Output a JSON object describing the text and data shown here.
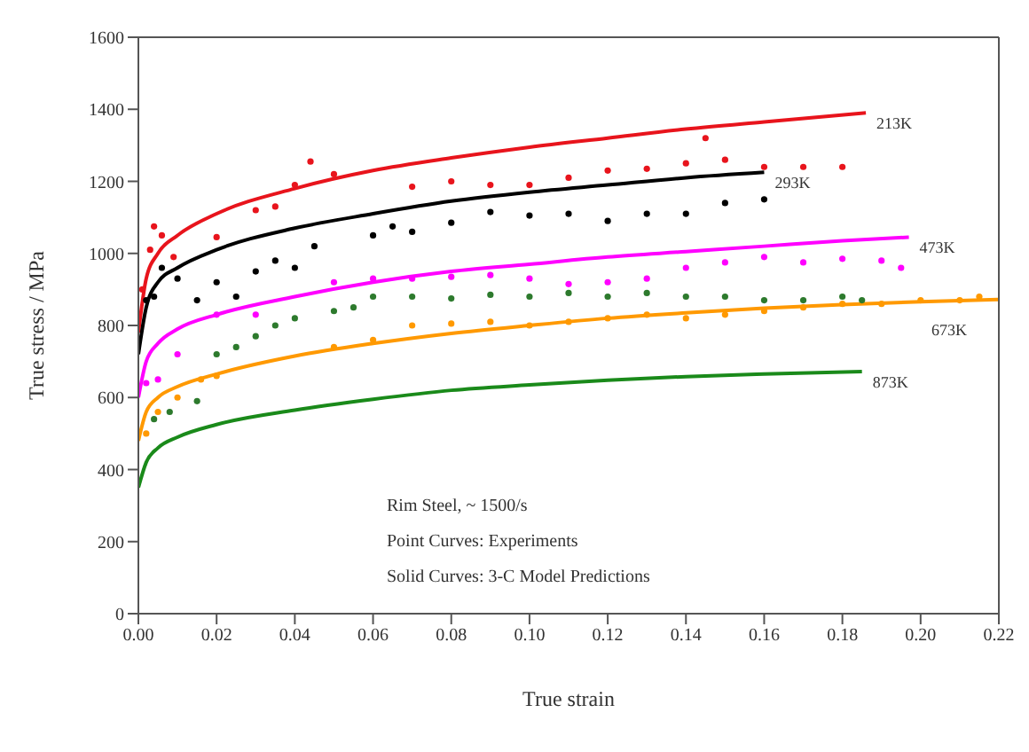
{
  "chart_data": {
    "type": "line",
    "xlabel": "True strain",
    "ylabel": "True stress / MPa",
    "xlim": [
      0,
      0.22
    ],
    "ylim": [
      0,
      1600
    ],
    "xticks": [
      {
        "value": 0,
        "label": "0.00"
      },
      {
        "value": 0.02,
        "label": "0.02"
      },
      {
        "value": 0.04,
        "label": "0.04"
      },
      {
        "value": 0.06,
        "label": "0.06"
      },
      {
        "value": 0.08,
        "label": "0.08"
      },
      {
        "value": 0.1,
        "label": "0.10"
      },
      {
        "value": 0.12,
        "label": "0.12"
      },
      {
        "value": 0.14,
        "label": "0.14"
      },
      {
        "value": 0.16,
        "label": "0.16"
      },
      {
        "value": 0.18,
        "label": "0.18"
      },
      {
        "value": 0.2,
        "label": "0.20"
      },
      {
        "value": 0.22,
        "label": "0.22"
      }
    ],
    "yticks": [
      0,
      200,
      400,
      600,
      800,
      1000,
      1200,
      1400,
      1600
    ],
    "grid": false,
    "legend": false,
    "line_style": "solid",
    "annotations": [
      "Rim Steel, ~ 1500/s",
      "Point Curves: Experiments",
      "Solid Curves: 3-C Model Predictions"
    ],
    "series": [
      {
        "name": "213K",
        "marker": "none",
        "color": "#e8141c",
        "x": [
          0,
          0.002,
          0.005,
          0.01,
          0.02,
          0.04,
          0.06,
          0.08,
          0.1,
          0.12,
          0.14,
          0.16,
          0.186
        ],
        "values": [
          780,
          930,
          1000,
          1050,
          1110,
          1180,
          1230,
          1265,
          1295,
          1320,
          1345,
          1365,
          1390
        ]
      },
      {
        "name": "293K",
        "marker": "none",
        "color": "#000000",
        "x": [
          0,
          0.002,
          0.005,
          0.01,
          0.02,
          0.04,
          0.06,
          0.08,
          0.1,
          0.12,
          0.14,
          0.16
        ],
        "values": [
          720,
          850,
          920,
          960,
          1010,
          1070,
          1110,
          1145,
          1170,
          1190,
          1210,
          1225
        ]
      },
      {
        "name": "473K",
        "marker": "none",
        "color": "#ff00ff",
        "x": [
          0,
          0.002,
          0.005,
          0.01,
          0.02,
          0.04,
          0.06,
          0.08,
          0.1,
          0.12,
          0.14,
          0.16,
          0.18,
          0.197
        ],
        "values": [
          600,
          700,
          750,
          790,
          830,
          880,
          920,
          950,
          970,
          990,
          1005,
          1020,
          1035,
          1045
        ]
      },
      {
        "name": "673K",
        "marker": "none",
        "color": "#ff9900",
        "x": [
          0,
          0.002,
          0.005,
          0.01,
          0.02,
          0.04,
          0.06,
          0.08,
          0.1,
          0.12,
          0.14,
          0.16,
          0.18,
          0.2,
          0.22
        ],
        "values": [
          480,
          560,
          600,
          630,
          665,
          715,
          750,
          778,
          800,
          820,
          835,
          848,
          858,
          866,
          872
        ]
      },
      {
        "name": "873K",
        "marker": "none",
        "color": "#1a8a1a",
        "x": [
          0,
          0.002,
          0.005,
          0.01,
          0.02,
          0.04,
          0.06,
          0.08,
          0.1,
          0.12,
          0.14,
          0.16,
          0.185
        ],
        "values": [
          350,
          420,
          460,
          490,
          525,
          565,
          595,
          620,
          635,
          648,
          658,
          665,
          672
        ]
      },
      {
        "type": "scatter",
        "marker": "circle",
        "color": "#e8141c",
        "x": [
          0.001,
          0.003,
          0.004,
          0.006,
          0.009,
          0.02,
          0.03,
          0.035,
          0.04,
          0.044,
          0.05,
          0.07,
          0.08,
          0.09,
          0.1,
          0.11,
          0.12,
          0.13,
          0.14,
          0.145,
          0.15,
          0.16,
          0.17,
          0.18
        ],
        "values": [
          900,
          1010,
          1075,
          1050,
          990,
          1045,
          1120,
          1130,
          1190,
          1255,
          1220,
          1185,
          1200,
          1190,
          1190,
          1210,
          1230,
          1235,
          1250,
          1320,
          1260,
          1240,
          1240,
          1240
        ]
      },
      {
        "type": "scatter",
        "marker": "circle",
        "color": "#000000",
        "x": [
          0.002,
          0.004,
          0.006,
          0.01,
          0.015,
          0.02,
          0.025,
          0.03,
          0.035,
          0.04,
          0.045,
          0.06,
          0.065,
          0.07,
          0.08,
          0.09,
          0.1,
          0.11,
          0.12,
          0.13,
          0.14,
          0.15,
          0.16
        ],
        "values": [
          870,
          880,
          960,
          930,
          870,
          920,
          880,
          950,
          980,
          960,
          1020,
          1050,
          1075,
          1060,
          1085,
          1115,
          1105,
          1110,
          1090,
          1110,
          1110,
          1140,
          1150
        ]
      },
      {
        "type": "scatter",
        "marker": "circle",
        "color": "#ff00ff",
        "x": [
          0.002,
          0.005,
          0.01,
          0.02,
          0.03,
          0.05,
          0.06,
          0.07,
          0.08,
          0.09,
          0.1,
          0.11,
          0.12,
          0.13,
          0.14,
          0.15,
          0.16,
          0.17,
          0.18,
          0.19,
          0.195
        ],
        "values": [
          640,
          650,
          720,
          830,
          830,
          920,
          930,
          930,
          935,
          940,
          930,
          915,
          920,
          930,
          960,
          975,
          990,
          975,
          985,
          980,
          960
        ]
      },
      {
        "type": "scatter",
        "marker": "circle",
        "color": "#2d7a2d",
        "x": [
          0.004,
          0.008,
          0.015,
          0.02,
          0.025,
          0.03,
          0.035,
          0.04,
          0.05,
          0.055,
          0.06,
          0.07,
          0.08,
          0.09,
          0.1,
          0.11,
          0.12,
          0.13,
          0.14,
          0.15,
          0.16,
          0.17,
          0.18,
          0.185
        ],
        "values": [
          540,
          560,
          590,
          720,
          740,
          770,
          800,
          820,
          840,
          850,
          880,
          880,
          875,
          885,
          880,
          890,
          880,
          890,
          880,
          880,
          870,
          870,
          880,
          870
        ]
      },
      {
        "type": "scatter",
        "marker": "circle",
        "color": "#ff9900",
        "x": [
          0.002,
          0.005,
          0.01,
          0.016,
          0.02,
          0.05,
          0.06,
          0.07,
          0.08,
          0.09,
          0.1,
          0.11,
          0.12,
          0.13,
          0.14,
          0.15,
          0.16,
          0.17,
          0.18,
          0.19,
          0.2,
          0.21,
          0.215
        ],
        "values": [
          500,
          560,
          600,
          650,
          660,
          740,
          760,
          800,
          805,
          810,
          800,
          810,
          820,
          830,
          820,
          830,
          840,
          850,
          860,
          860,
          870,
          870,
          880
        ]
      }
    ]
  }
}
